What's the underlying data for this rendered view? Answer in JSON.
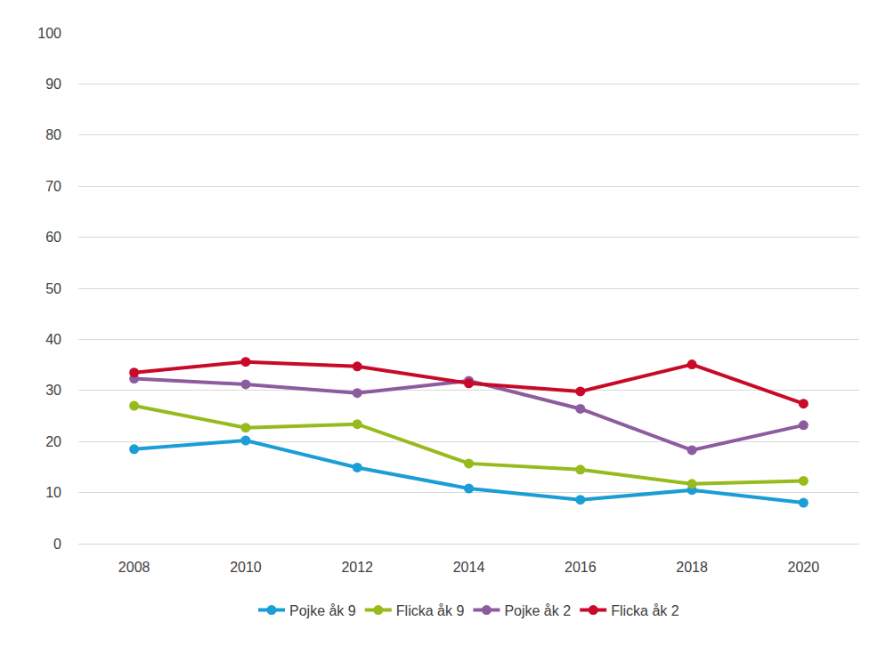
{
  "chart_data": {
    "type": "line",
    "x": [
      2008,
      2010,
      2012,
      2014,
      2016,
      2018,
      2020
    ],
    "xlim": [
      2007,
      2021
    ],
    "xticks": [
      2008,
      2010,
      2012,
      2014,
      2016,
      2018,
      2020
    ],
    "ylim": [
      0,
      100
    ],
    "yticks": [
      0,
      10,
      20,
      30,
      40,
      50,
      60,
      70,
      80,
      90,
      100
    ],
    "grid": true,
    "legend": "bottom",
    "marker": "circle",
    "line_style": "solid",
    "series": [
      {
        "name": "Pojke åk 9",
        "color": "#1b9dd6",
        "values": [
          18.5,
          20.2,
          14.9,
          10.8,
          8.6,
          10.5,
          8.0
        ]
      },
      {
        "name": "Flicka åk 9",
        "color": "#97ba1c",
        "values": [
          27.0,
          22.7,
          23.4,
          15.7,
          14.5,
          11.7,
          12.3
        ]
      },
      {
        "name": "Pojke åk 2",
        "color": "#8d5c9f",
        "values": [
          32.3,
          31.2,
          29.5,
          31.9,
          26.4,
          18.3,
          23.2
        ]
      },
      {
        "name": "Flicka åk 2",
        "color": "#c80a28",
        "values": [
          33.5,
          35.6,
          34.7,
          31.4,
          29.8,
          35.1,
          27.4
        ]
      }
    ]
  }
}
